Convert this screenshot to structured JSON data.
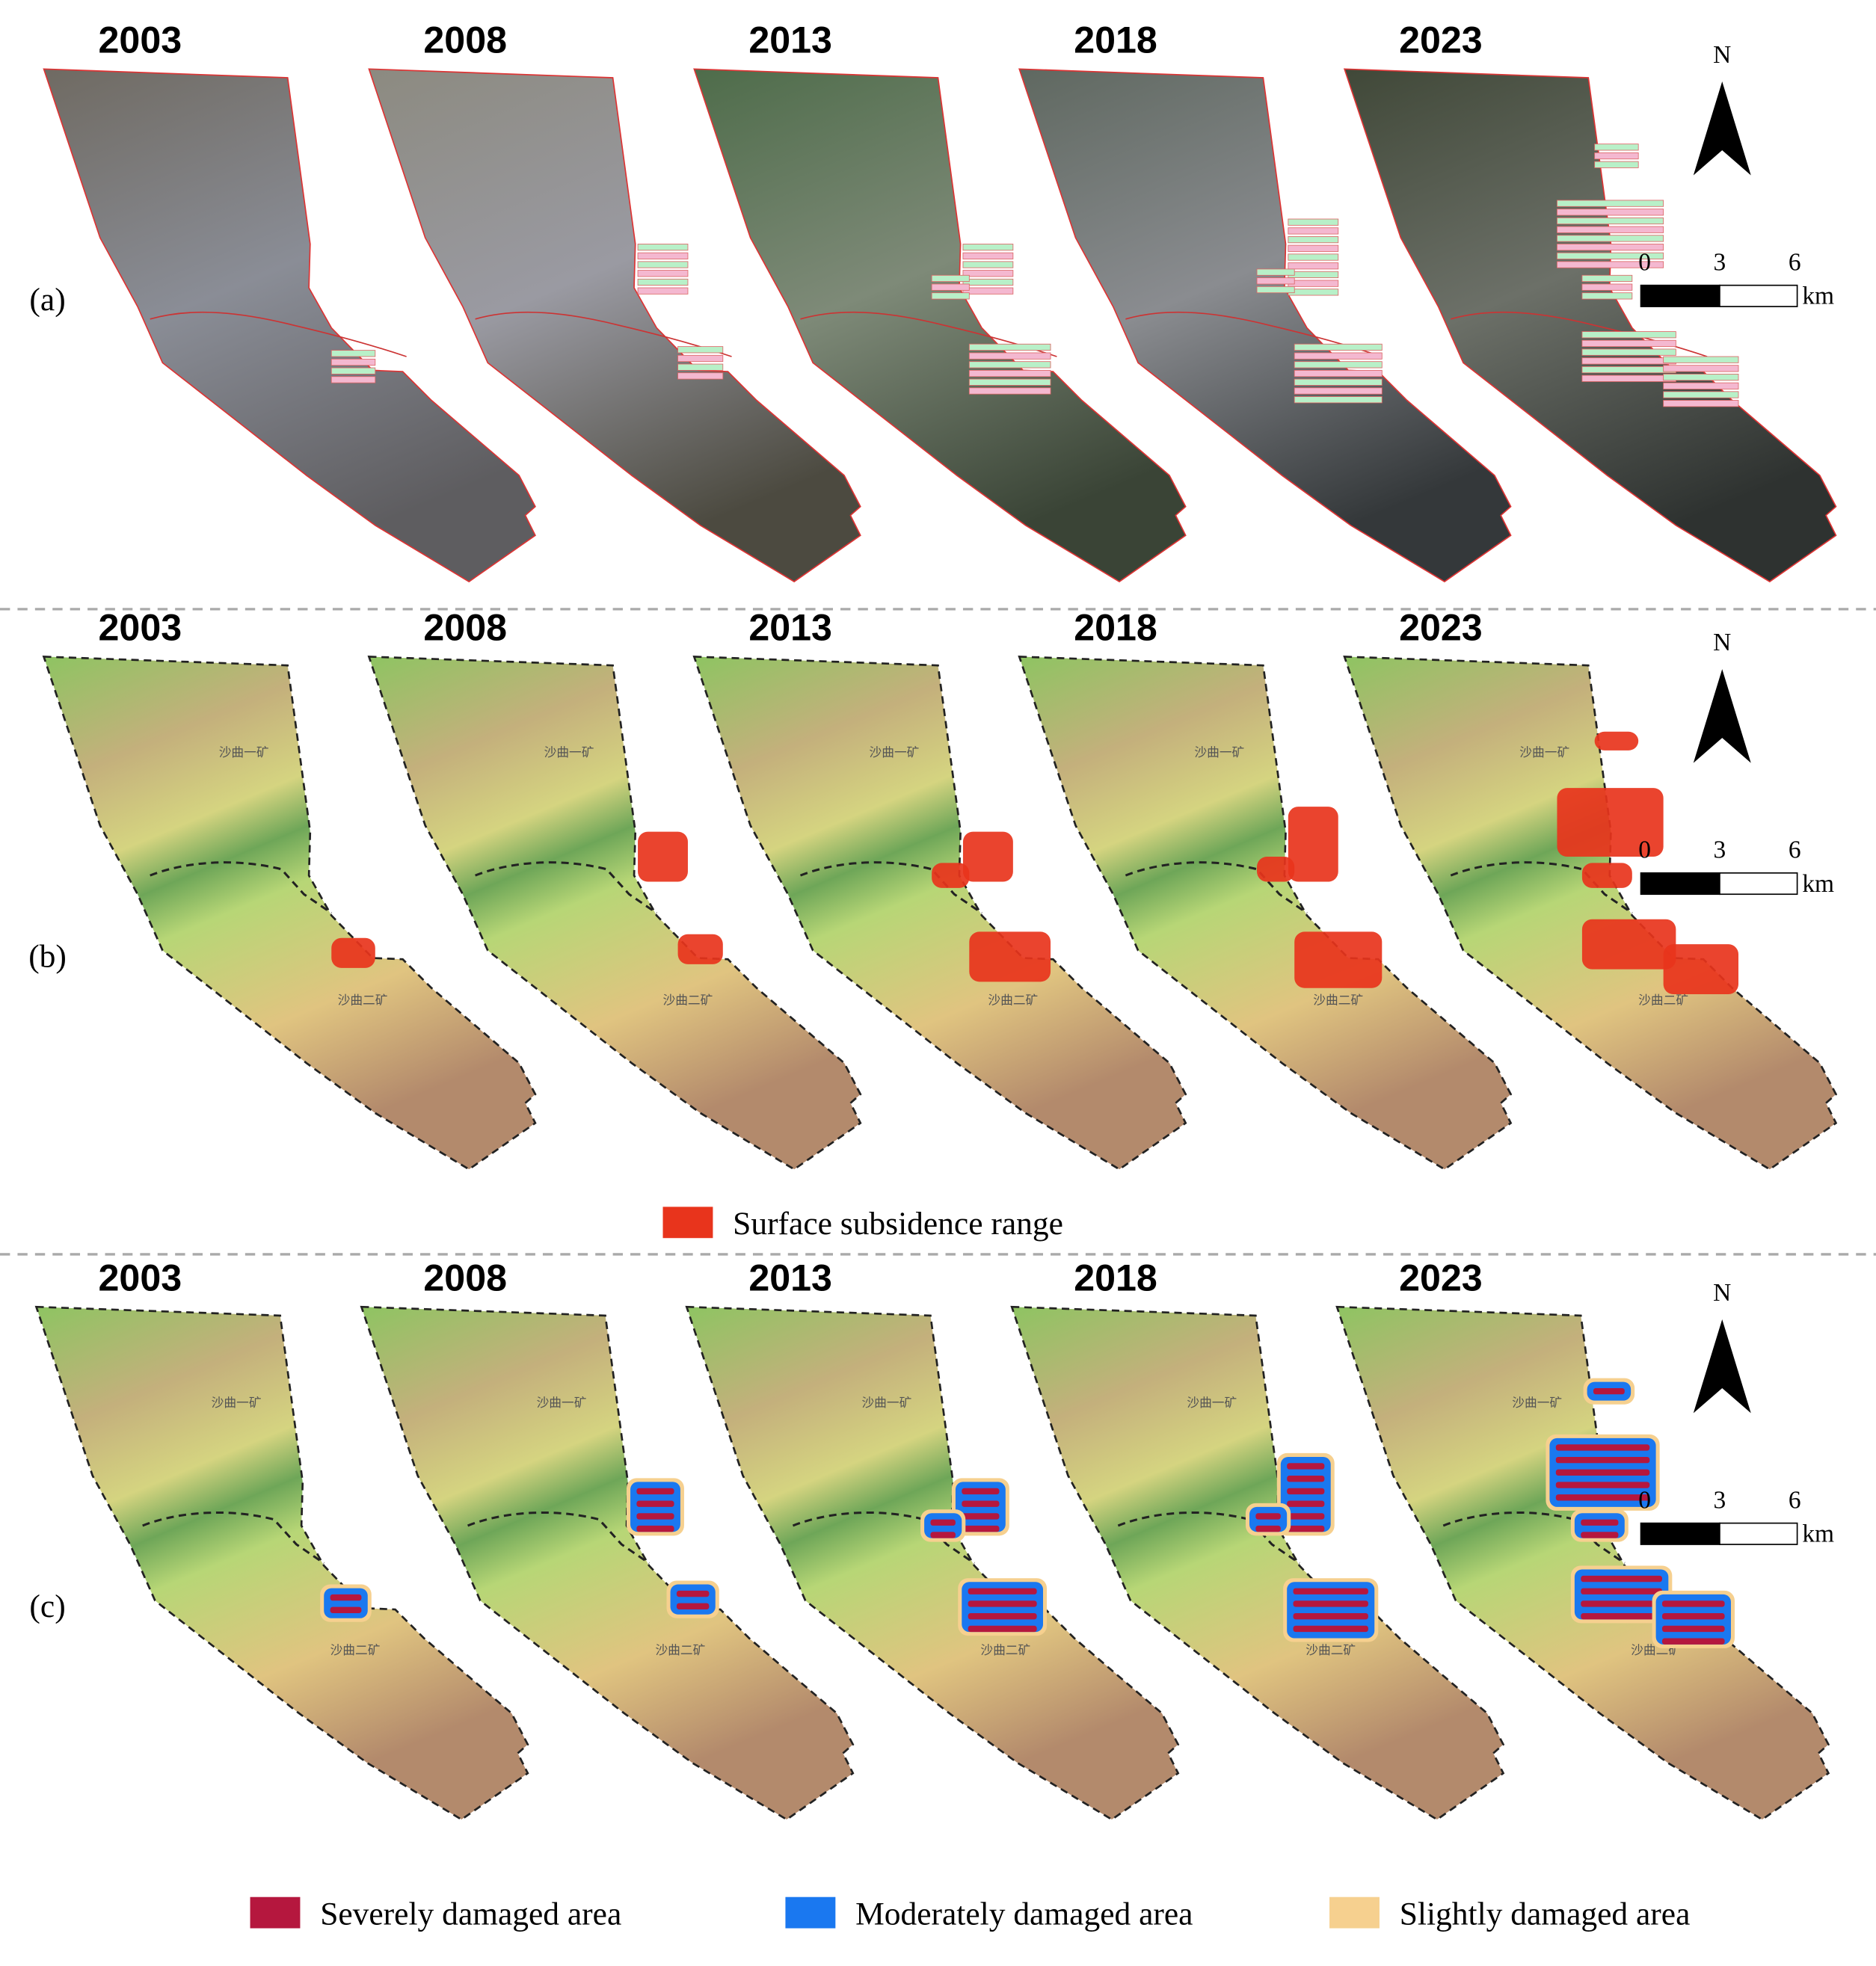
{
  "rows": [
    {
      "label": "(a)",
      "years": [
        "2003",
        "2008",
        "2013",
        "2018",
        "2023"
      ],
      "north": "N",
      "scale_bar": {
        "ticks": [
          "0",
          "3",
          "6"
        ],
        "unit": "km"
      }
    },
    {
      "label": "(b)",
      "years": [
        "2003",
        "2008",
        "2013",
        "2018",
        "2023"
      ],
      "north": "N",
      "scale_bar": {
        "ticks": [
          "0",
          "3",
          "6"
        ],
        "unit": "km"
      },
      "mine_labels": [
        "沙曲一矿",
        "沙曲二矿"
      ],
      "legend": [
        {
          "label": "Surface subsidence range",
          "color": "#e8341c"
        }
      ]
    },
    {
      "label": "(c)",
      "years": [
        "2003",
        "2008",
        "2013",
        "2018",
        "2023"
      ],
      "north": "N",
      "scale_bar": {
        "ticks": [
          "0",
          "3",
          "6"
        ],
        "unit": "km"
      },
      "mine_labels": [
        "沙曲一矿",
        "沙曲二矿"
      ],
      "legend": [
        {
          "label": "Severely damaged area",
          "color": "#b5173e"
        },
        {
          "label": "Moderately damaged area",
          "color": "#1a78f0"
        },
        {
          "label": "Slightly damaged area",
          "color": "#f6d08f"
        }
      ]
    }
  ]
}
